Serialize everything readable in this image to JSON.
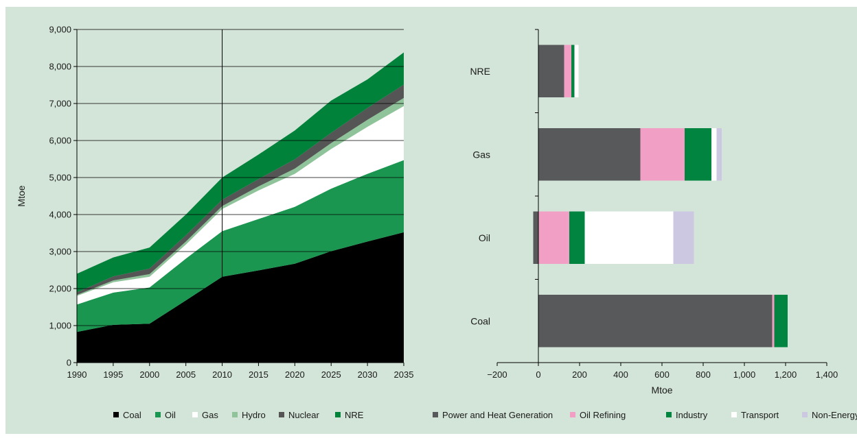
{
  "chart_data": [
    {
      "type": "area",
      "stacked": true,
      "x": [
        1990,
        1995,
        2000,
        2005,
        2010,
        2015,
        2020,
        2025,
        2030,
        2035
      ],
      "xlim": [
        1990,
        2035
      ],
      "ylim": [
        0,
        9000
      ],
      "yticks": [
        "0",
        "1,000",
        "2,000",
        "3,000",
        "4,000",
        "5,000",
        "6,000",
        "7,000",
        "8,000",
        "9,000"
      ],
      "xticks": [
        "1990",
        "1995",
        "2000",
        "2005",
        "2010",
        "2015",
        "2020",
        "2025",
        "2030",
        "2035"
      ],
      "ylabel": "Mtoe",
      "xlabel": "",
      "grid": "horizontal",
      "vertical_marker": 2010,
      "legend_position": "bottom",
      "series": [
        {
          "name": "Coal",
          "color": "#000000",
          "values": [
            830,
            1020,
            1050,
            1680,
            2320,
            2490,
            2670,
            3010,
            3270,
            3520
          ]
        },
        {
          "name": "Oil",
          "color": "#1a9650",
          "values": [
            740,
            870,
            980,
            1130,
            1230,
            1390,
            1540,
            1690,
            1830,
            1950
          ]
        },
        {
          "name": "Gas",
          "color": "#ffffff",
          "values": [
            230,
            280,
            290,
            380,
            600,
            770,
            890,
            1070,
            1270,
            1460
          ]
        },
        {
          "name": "Hydro",
          "color": "#8fc49a",
          "values": [
            30,
            50,
            70,
            80,
            80,
            110,
            140,
            160,
            190,
            220
          ]
        },
        {
          "name": "Nuclear",
          "color": "#555555",
          "values": [
            70,
            110,
            150,
            170,
            170,
            200,
            250,
            280,
            320,
            360
          ]
        },
        {
          "name": "NRE",
          "color": "#00823b",
          "values": [
            500,
            510,
            570,
            560,
            600,
            660,
            780,
            870,
            770,
            870
          ]
        }
      ]
    },
    {
      "type": "bar",
      "orientation": "horizontal",
      "stacked": true,
      "categories": [
        "Coal",
        "Oil",
        "Gas",
        "NRE"
      ],
      "xlim": [
        -200,
        1400
      ],
      "xticks": [
        "−200",
        "0",
        "200",
        "400",
        "600",
        "800",
        "1,000",
        "1,200",
        "1,400"
      ],
      "xlabel": "Mtoe",
      "ylabel": "",
      "legend_position": "bottom",
      "series": [
        {
          "name": "Power and Heat Generation",
          "color": "#58595b",
          "values": [
            1135,
            -25,
            495,
            125
          ]
        },
        {
          "name": "Oil Refining",
          "color": "#f29fc5",
          "values": [
            10,
            150,
            215,
            35
          ]
        },
        {
          "name": "Industry",
          "color": "#00843f",
          "values": [
            65,
            75,
            130,
            15
          ]
        },
        {
          "name": "Transport",
          "color": "#ffffff",
          "values": [
            0,
            430,
            25,
            20
          ]
        },
        {
          "name": "Non-Energy",
          "color": "#ccc8e2",
          "values": [
            0,
            100,
            25,
            0
          ]
        }
      ]
    }
  ]
}
